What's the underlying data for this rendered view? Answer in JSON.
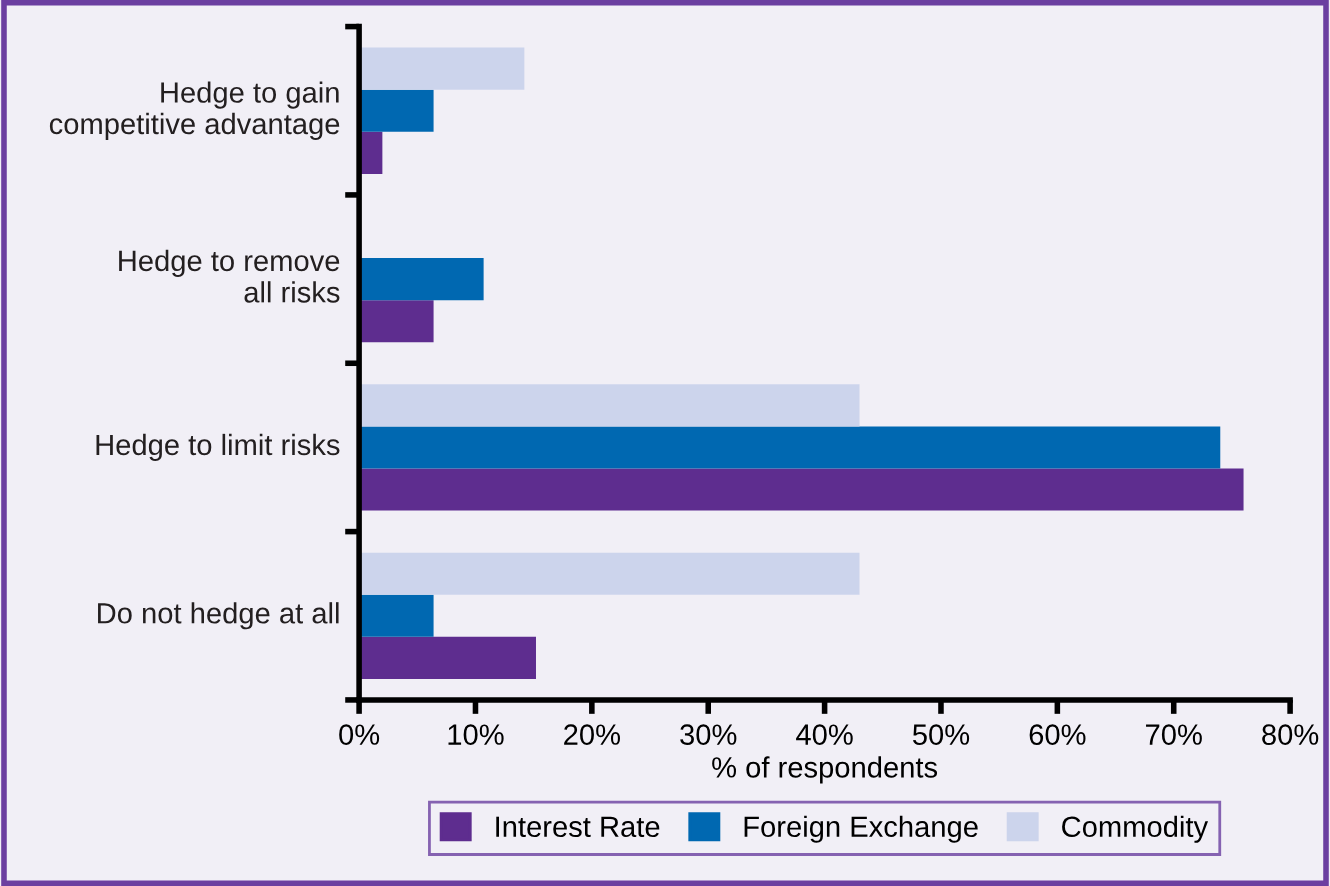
{
  "chart_data": {
    "type": "bar",
    "orientation": "horizontal",
    "categories": [
      "Hedge to gain\ncompetitive advantage",
      "Hedge to remove\nall risks",
      "Hedge to limit risks",
      "Do not hedge at all"
    ],
    "series": [
      {
        "name": "Interest Rate",
        "color": "#5e2d8f",
        "values": [
          2,
          6.4,
          76,
          15.2
        ]
      },
      {
        "name": "Foreign Exchange",
        "color": "#0068b1",
        "values": [
          6.4,
          10.7,
          74,
          6.4
        ]
      },
      {
        "name": "Commodity",
        "color": "#ccd4ec",
        "values": [
          14.2,
          0,
          43,
          43
        ]
      }
    ],
    "xlabel": "% of respondents",
    "xlim": [
      0,
      80
    ],
    "xticks": [
      {
        "value": 0,
        "label": "0%"
      },
      {
        "value": 10,
        "label": "10%"
      },
      {
        "value": 20,
        "label": "20%"
      },
      {
        "value": 30,
        "label": "30%"
      },
      {
        "value": 40,
        "label": "40%"
      },
      {
        "value": 50,
        "label": "50%"
      },
      {
        "value": 60,
        "label": "60%"
      },
      {
        "value": 70,
        "label": "70%"
      },
      {
        "value": 80,
        "label": "80%"
      }
    ],
    "grid": false,
    "legend": "bottom"
  }
}
